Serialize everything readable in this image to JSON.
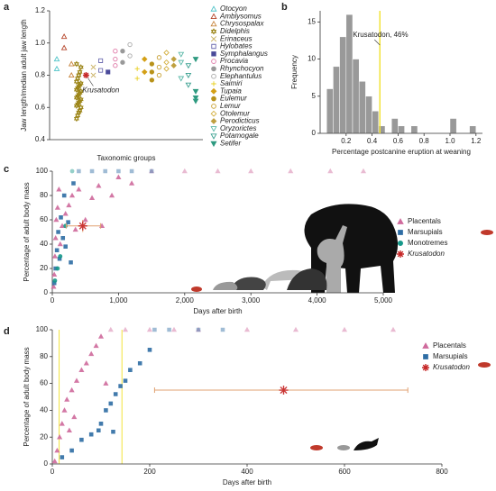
{
  "chart_data": [
    {
      "type": "strip",
      "panel": "a",
      "xlabel": "Taxonomic groups",
      "ylabel": "Jaw length/median adult jaw length",
      "ylim": [
        0.4,
        1.2
      ],
      "yticks": [
        0.4,
        0.6,
        0.8,
        {
          "value": 1,
          "label": "1.0"
        },
        1.2
      ],
      "highlight": {
        "name": "Krusatodon",
        "value": 0.8,
        "color": "#c62828",
        "marker": "asterisk"
      },
      "series": [
        {
          "name": "Otocyon",
          "color": "#4fc3c8",
          "marker": "triangle-open",
          "values": [
            0.9,
            0.84
          ]
        },
        {
          "name": "Amblysomus",
          "color": "#b5452a",
          "marker": "triangle-open",
          "values": [
            1.04,
            0.97
          ]
        },
        {
          "name": "Chrysospalax",
          "color": "#c7843b",
          "marker": "triangle-open",
          "values": [
            0.87,
            0.8
          ]
        },
        {
          "name": "Didelphis",
          "color": "#9c8518",
          "marker": "hexagram",
          "values": [
            0.53,
            0.55,
            0.57,
            0.58,
            0.6,
            0.61,
            0.62,
            0.63,
            0.64,
            0.65,
            0.66,
            0.67,
            0.68,
            0.69,
            0.7,
            0.71,
            0.72,
            0.73,
            0.74,
            0.75,
            0.76,
            0.78,
            0.8,
            0.82,
            0.85,
            0.87
          ]
        },
        {
          "name": "Erinaceus",
          "color": "#c9b060",
          "marker": "x",
          "values": [
            0.85,
            0.8
          ]
        },
        {
          "name": "Hylobates",
          "color": "#6c6bb0",
          "marker": "square-open",
          "values": [
            0.89,
            0.83
          ]
        },
        {
          "name": "Symphalangus",
          "color": "#4a4a9a",
          "marker": "square",
          "values": [
            0.82
          ]
        },
        {
          "name": "Procavia",
          "color": "#e07aa8",
          "marker": "circle-open",
          "values": [
            0.95,
            0.9,
            0.86
          ]
        },
        {
          "name": "Rhynchocyon",
          "color": "#999999",
          "marker": "circle",
          "values": [
            0.95,
            0.88
          ]
        },
        {
          "name": "Elephantulus",
          "color": "#aaaaaa",
          "marker": "circle-open",
          "values": [
            0.99,
            0.92
          ]
        },
        {
          "name": "Saimiri",
          "color": "#e8d020",
          "marker": "plus",
          "values": [
            0.84,
            0.78
          ]
        },
        {
          "name": "Tupaia",
          "color": "#d4a017",
          "marker": "diamond",
          "values": [
            0.9,
            0.82
          ]
        },
        {
          "name": "Eulemur",
          "color": "#b8921a",
          "marker": "circle",
          "values": [
            0.87,
            0.82,
            0.77
          ]
        },
        {
          "name": "Lemur",
          "color": "#c8a032",
          "marker": "circle-open",
          "values": [
            0.91,
            0.85,
            0.8
          ]
        },
        {
          "name": "Otolemur",
          "color": "#d4b040",
          "marker": "diamond-open",
          "values": [
            0.94,
            0.88,
            0.84
          ]
        },
        {
          "name": "Perodicticus",
          "color": "#bfa040",
          "marker": "diamond",
          "values": [
            0.9,
            0.86
          ]
        },
        {
          "name": "Oryzorictes",
          "color": "#5ab8a8",
          "marker": "triangle-down-open",
          "values": [
            0.93,
            0.88,
            0.78
          ]
        },
        {
          "name": "Potamogale",
          "color": "#3aa090",
          "marker": "triangle-down-open",
          "values": [
            0.86,
            0.8,
            0.74
          ]
        },
        {
          "name": "Setifer",
          "color": "#2e9a80",
          "marker": "triangle-down",
          "values": [
            0.9,
            0.7,
            0.66,
            0.64
          ]
        }
      ]
    },
    {
      "type": "histogram",
      "panel": "b",
      "xlabel": "Percentage postcanine eruption at weaning",
      "ylabel": "Frequency",
      "color": "#999999",
      "xlim": [
        0,
        1.25
      ],
      "ylim": [
        0,
        16.5
      ],
      "xticks": [
        0.2,
        0.4,
        0.6,
        0.8,
        {
          "value": 1,
          "label": "1.0"
        },
        1.2
      ],
      "yticks": [
        0,
        5,
        10,
        15
      ],
      "bins": [
        0,
        0.05,
        0.1,
        0.15,
        0.2,
        0.25,
        0.3,
        0.35,
        0.4,
        0.45,
        0.5,
        0.55,
        0.6,
        0.65,
        0.7,
        0.75,
        0.8,
        0.85,
        0.9,
        0.95,
        1,
        1.05,
        1.1,
        1.15,
        1.2
      ],
      "values": [
        0,
        6,
        9,
        13,
        16,
        10,
        7,
        5,
        3,
        1,
        0,
        2,
        1,
        0,
        1,
        0,
        0,
        0,
        0,
        0,
        2,
        0,
        0,
        1
      ],
      "vline": {
        "value": 0.46,
        "label": "Krusatodon, 46%",
        "color": "#f2e33a"
      }
    },
    {
      "type": "scatter",
      "panel": "c",
      "xlabel": "Days after birth",
      "ylabel": "Percentage of adult body mass",
      "xlim": [
        0,
        5000
      ],
      "ylim": [
        0,
        100
      ],
      "xticks": [
        0,
        {
          "value": 1000,
          "label": "1,000"
        },
        {
          "value": 2000,
          "label": "2,000"
        },
        {
          "value": 3000,
          "label": "3,000"
        },
        {
          "value": 4000,
          "label": "4,000"
        },
        {
          "value": 5000,
          "label": "5,000"
        }
      ],
      "yticks": [
        0,
        20,
        40,
        60,
        80,
        100
      ],
      "series": [
        {
          "name": "Placentals",
          "color": "#cf6a9c",
          "marker": "triangle",
          "x": [
            20,
            30,
            40,
            50,
            60,
            80,
            100,
            120,
            150,
            200,
            250,
            300,
            350,
            400,
            500,
            600,
            700,
            900,
            1200,
            1500,
            2000,
            2500,
            3000,
            3600,
            4200,
            4700,
            750,
            1000
          ],
          "y": [
            5,
            15,
            30,
            45,
            60,
            70,
            85,
            40,
            55,
            65,
            72,
            80,
            52,
            85,
            60,
            78,
            88,
            80,
            90,
            100,
            100,
            100,
            100,
            100,
            100,
            100,
            55,
            95
          ]
        },
        {
          "name": "Marsupials",
          "color": "#2e6da4",
          "marker": "square",
          "x": [
            30,
            50,
            70,
            90,
            110,
            130,
            160,
            180,
            200,
            240,
            280,
            320,
            400,
            600,
            800,
            1000,
            1200,
            1500
          ],
          "y": [
            8,
            20,
            35,
            50,
            28,
            62,
            45,
            80,
            38,
            58,
            25,
            90,
            100,
            100,
            100,
            100,
            100,
            100
          ]
        },
        {
          "name": "Monotremes",
          "color": "#16988a",
          "marker": "circle",
          "x": [
            40,
            80,
            120,
            200,
            300
          ],
          "y": [
            10,
            20,
            30,
            55,
            100
          ]
        },
        {
          "name": "Krusatodon",
          "color": "#c62828",
          "marker": "asterisk",
          "x": [
            460
          ],
          "y": [
            55
          ],
          "x_range": [
            210,
            730
          ],
          "y_range": [
            50,
            60
          ]
        }
      ]
    },
    {
      "type": "scatter",
      "panel": "d",
      "xlabel": "Days after birth",
      "ylabel": "Percentage of adult body mass",
      "xlim": [
        0,
        800
      ],
      "ylim": [
        0,
        100
      ],
      "xticks": [
        0,
        200,
        400,
        600,
        800
      ],
      "yticks": [
        0,
        20,
        40,
        60,
        80,
        100
      ],
      "vlines": [
        14,
        143
      ],
      "vline_color": "#f2e33a",
      "series": [
        {
          "name": "Placentals",
          "color": "#cf6a9c",
          "marker": "triangle",
          "x": [
            5,
            10,
            15,
            20,
            25,
            30,
            40,
            50,
            60,
            70,
            80,
            90,
            100,
            120,
            150,
            200,
            250,
            300,
            400,
            500,
            600,
            700,
            35,
            45,
            110
          ],
          "y": [
            2,
            10,
            20,
            30,
            40,
            48,
            55,
            62,
            70,
            75,
            82,
            88,
            95,
            100,
            100,
            100,
            100,
            100,
            100,
            100,
            100,
            100,
            25,
            35,
            60
          ]
        },
        {
          "name": "Marsupials",
          "color": "#2e6da4",
          "marker": "square",
          "x": [
            20,
            40,
            60,
            80,
            100,
            110,
            120,
            130,
            140,
            150,
            160,
            180,
            200,
            210,
            240,
            300,
            350,
            95,
            125
          ],
          "y": [
            5,
            10,
            18,
            22,
            30,
            40,
            45,
            52,
            58,
            62,
            70,
            75,
            85,
            100,
            100,
            100,
            100,
            25,
            24
          ]
        },
        {
          "name": "Krusatodon",
          "color": "#c62828",
          "marker": "asterisk",
          "x": [
            475
          ],
          "y": [
            55
          ],
          "x_range": [
            210,
            730
          ],
          "y_range": [
            53,
            57
          ]
        }
      ]
    }
  ]
}
